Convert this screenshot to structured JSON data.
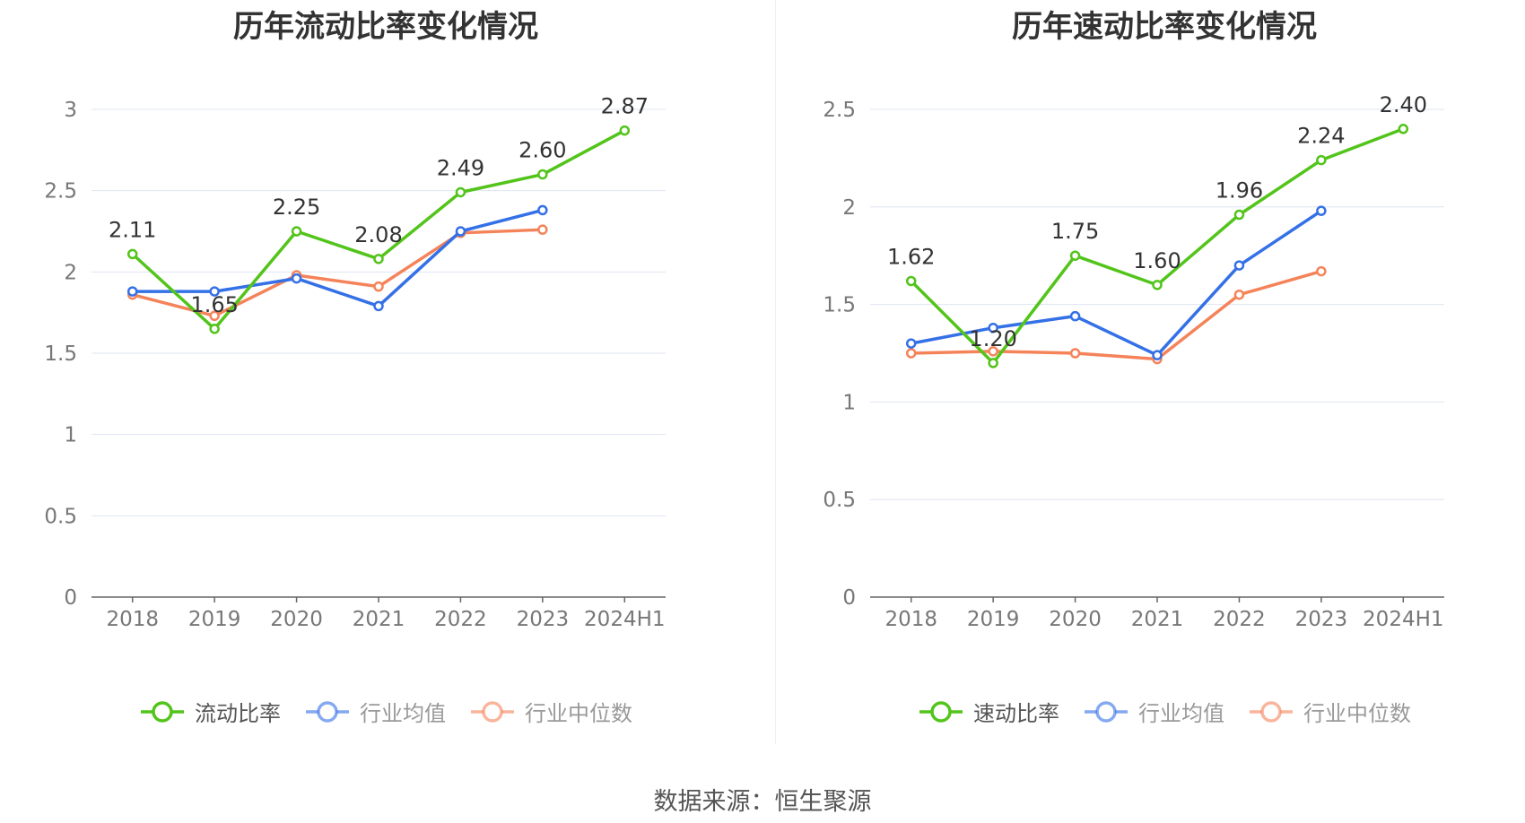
{
  "chart_data": [
    {
      "type": "line",
      "title": "历年流动比率变化情况",
      "categories": [
        "2018",
        "2019",
        "2020",
        "2021",
        "2022",
        "2023",
        "2024H1"
      ],
      "ylim": [
        0,
        3
      ],
      "yticks": [
        "0",
        "0.5",
        "1",
        "1.5",
        "2",
        "2.5",
        "3"
      ],
      "grid": true,
      "legend_position": "bottom",
      "series": [
        {
          "name": "流动比率",
          "color": "#52c41a",
          "values": [
            2.11,
            1.65,
            2.25,
            2.08,
            2.49,
            2.6,
            2.87
          ],
          "labels": [
            "2.11",
            "1.65",
            "2.25",
            "2.08",
            "2.49",
            "2.60",
            "2.87"
          ]
        },
        {
          "name": "行业均值",
          "color": "#3470e6",
          "values": [
            1.88,
            1.88,
            1.96,
            1.79,
            2.25,
            2.38,
            null
          ]
        },
        {
          "name": "行业中位数",
          "color": "#f5835a",
          "values": [
            1.86,
            1.73,
            1.98,
            1.91,
            2.24,
            2.26,
            null
          ]
        }
      ]
    },
    {
      "type": "line",
      "title": "历年速动比率变化情况",
      "categories": [
        "2018",
        "2019",
        "2020",
        "2021",
        "2022",
        "2023",
        "2024H1"
      ],
      "ylim": [
        0,
        2.5
      ],
      "yticks": [
        "0",
        "0.5",
        "1",
        "1.5",
        "2",
        "2.5"
      ],
      "grid": true,
      "legend_position": "bottom",
      "series": [
        {
          "name": "速动比率",
          "color": "#52c41a",
          "values": [
            1.62,
            1.2,
            1.75,
            1.6,
            1.96,
            2.24,
            2.4
          ],
          "labels": [
            "1.62",
            "1.20",
            "1.75",
            "1.60",
            "1.96",
            "2.24",
            "2.40"
          ]
        },
        {
          "name": "行业均值",
          "color": "#3470e6",
          "values": [
            1.3,
            1.38,
            1.44,
            1.24,
            1.7,
            1.98,
            null
          ]
        },
        {
          "name": "行业中位数",
          "color": "#f5835a",
          "values": [
            1.25,
            1.26,
            1.25,
            1.22,
            1.55,
            1.67,
            null
          ]
        }
      ]
    }
  ],
  "source_text": "数据来源：恒生聚源"
}
